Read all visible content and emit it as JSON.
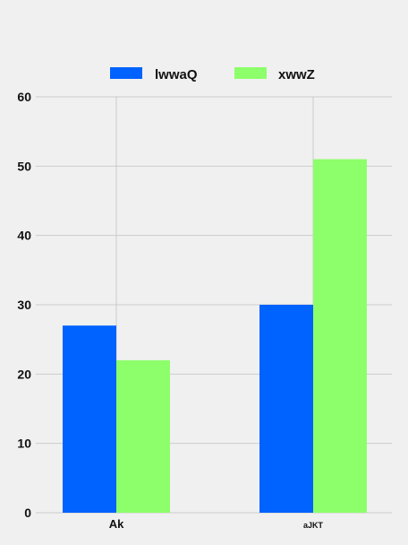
{
  "chart_data": {
    "type": "bar",
    "title": "",
    "xlabel": "",
    "ylabel": "",
    "categories": [
      "Ak",
      "aJKT"
    ],
    "series": [
      {
        "name": "lwwaQ",
        "color": "#0062ff",
        "values": [
          27,
          30
        ]
      },
      {
        "name": "xwwZ",
        "color": "#8dff6a",
        "values": [
          22,
          51
        ]
      }
    ],
    "ylim": [
      0,
      60
    ],
    "yticks": [
      "0",
      "10",
      "20",
      "30",
      "40",
      "50",
      "60"
    ],
    "grid": true,
    "legend_position": "top-center"
  }
}
